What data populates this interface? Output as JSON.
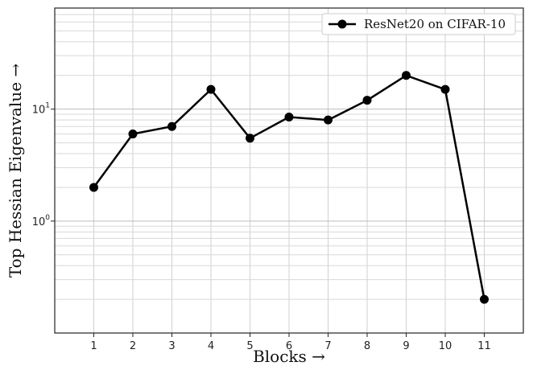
{
  "chart_data": {
    "type": "line",
    "x": [
      1,
      2,
      3,
      4,
      5,
      6,
      7,
      8,
      9,
      10,
      11
    ],
    "series": [
      {
        "name": "ResNet20 on CIFAR-10",
        "values": [
          2.0,
          6.0,
          7.0,
          15.0,
          5.5,
          8.5,
          8.0,
          12.0,
          20.0,
          15.0,
          0.2
        ],
        "color": "#000000"
      }
    ],
    "xlabel": "Blocks →",
    "ylabel": "Top Hessian Eigenvalue →",
    "yscale": "log",
    "ylim": [
      0.1,
      80
    ],
    "xlim": [
      0,
      12
    ],
    "xticks": [
      "1",
      "2",
      "3",
      "4",
      "5",
      "6",
      "7",
      "8",
      "9",
      "10",
      "11"
    ],
    "yticks": [
      {
        "value": 1,
        "base": "10",
        "exp": "0"
      },
      {
        "value": 10,
        "base": "10",
        "exp": "1"
      }
    ],
    "grid": true,
    "legend_position": "top-right"
  }
}
